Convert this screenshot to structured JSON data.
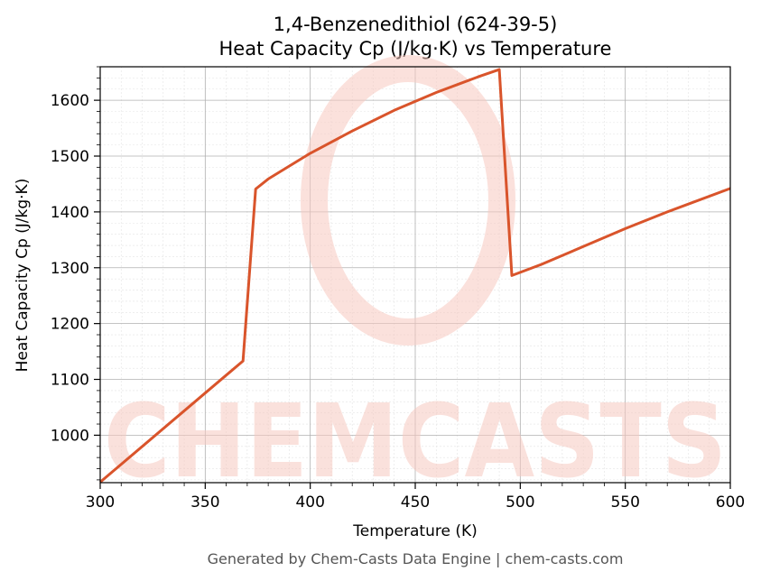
{
  "title_line1": "1,4-Benzenedithiol (624-39-5)",
  "title_line2": "Heat Capacity Cp (J/kg·K) vs Temperature",
  "footer": "Generated by Chem-Casts Data Engine | chem-casts.com",
  "watermark_text": "CHEMCASTS",
  "colors": {
    "line": "#d9542b",
    "grid_major": "#b0b0b0",
    "grid_minor": "#e3e3e3",
    "watermark": "#f7c9c0"
  },
  "chart_data": {
    "type": "line",
    "xlabel": "Temperature (K)",
    "ylabel": "Heat Capacity Cp (J/kg·K)",
    "xlim": [
      300,
      600
    ],
    "ylim": [
      915,
      1660
    ],
    "xticks": [
      300,
      350,
      400,
      450,
      500,
      550,
      600
    ],
    "yticks": [
      1000,
      1100,
      1200,
      1300,
      1400,
      1500,
      1600
    ],
    "grid": true,
    "series": [
      {
        "x": [
          300,
          368,
          374,
          380,
          400,
          420,
          440,
          460,
          480,
          490,
          496,
          510,
          530,
          550,
          570,
          600
        ],
        "y": [
          916,
          1133,
          1441,
          1459,
          1505,
          1545,
          1582,
          1614,
          1642,
          1655,
          1286,
          1306,
          1338,
          1370,
          1400,
          1442
        ]
      }
    ]
  }
}
